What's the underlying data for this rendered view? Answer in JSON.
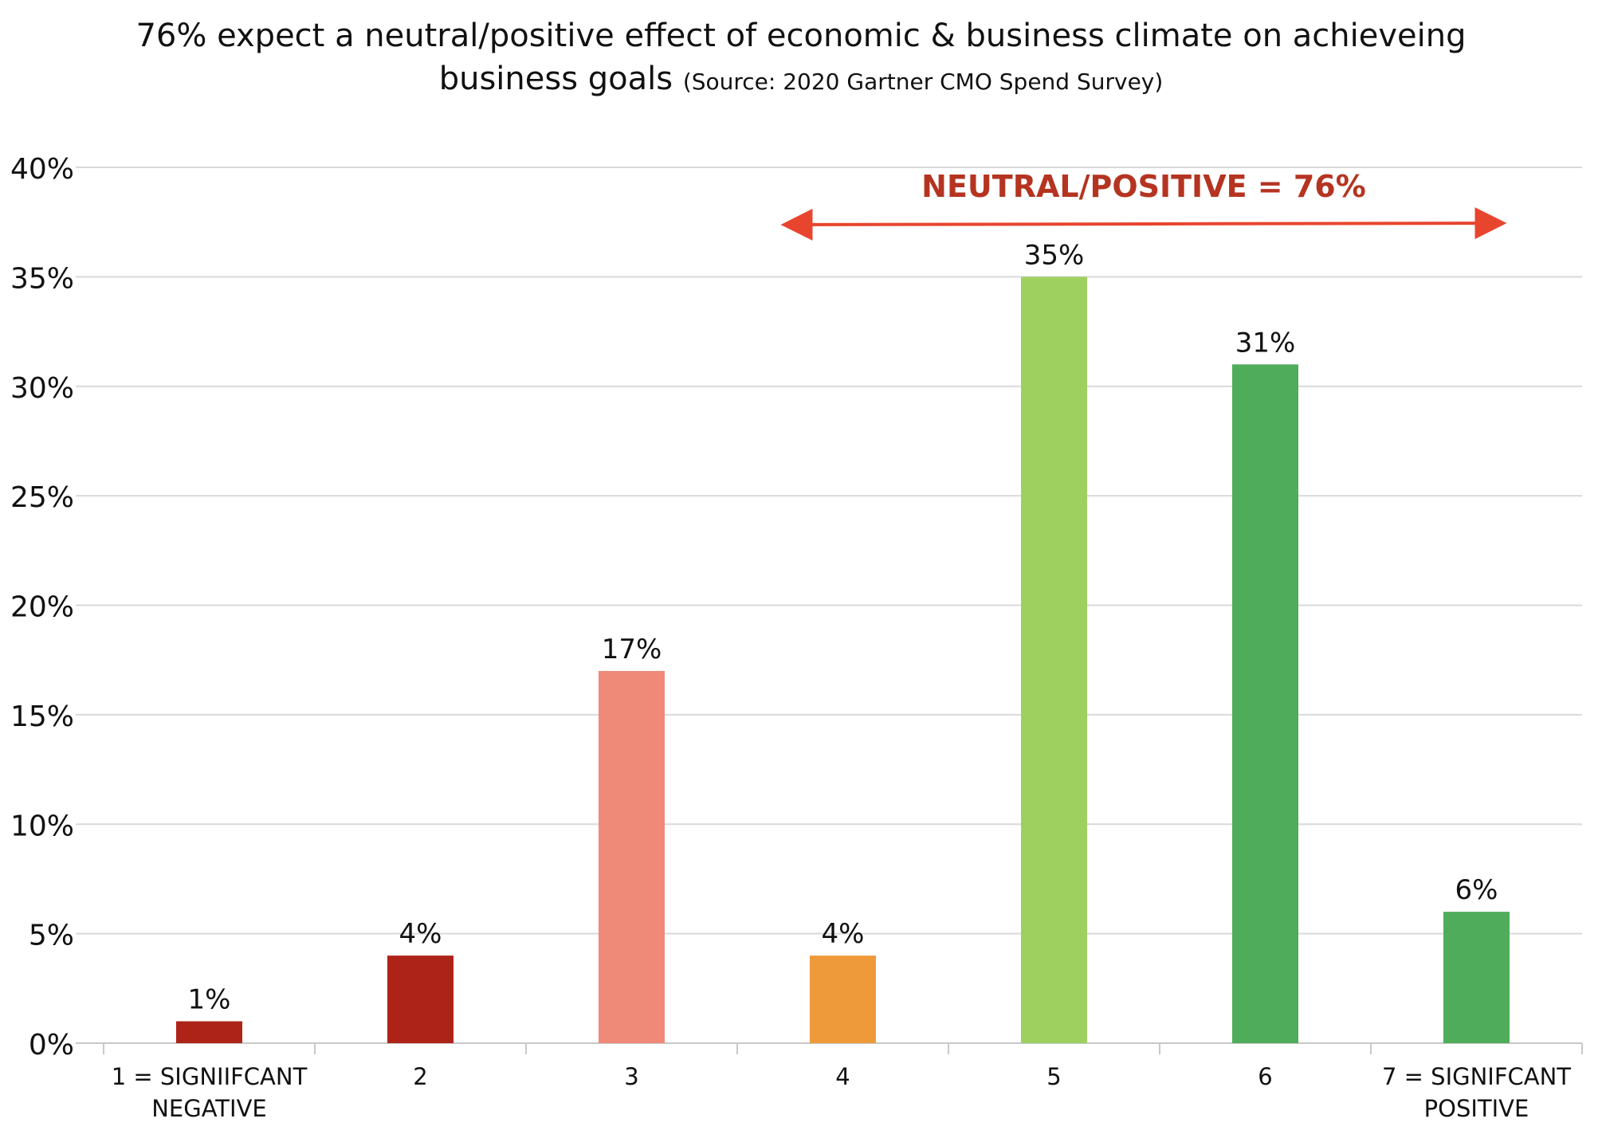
{
  "chart_data": {
    "type": "bar",
    "title_line1": "76% expect a neutral/positive effect of economic & business climate on achieveing",
    "title_line2": "business goals",
    "title_source": "(Source: 2020 Gartner CMO Spend Survey)",
    "categories": [
      "1 = SIGNIIFCANT NEGATIVE",
      "2",
      "3",
      "4",
      "5",
      "6",
      "7 = SIGNIFCANT POSITIVE"
    ],
    "category_lines": [
      [
        "1 = SIGNIIFCANT",
        "NEGATIVE"
      ],
      [
        "2"
      ],
      [
        "3"
      ],
      [
        "4"
      ],
      [
        "5"
      ],
      [
        "6"
      ],
      [
        "7 = SIGNIFCANT",
        "POSITIVE"
      ]
    ],
    "values": [
      1,
      4,
      17,
      4,
      35,
      31,
      6
    ],
    "data_labels": [
      "1%",
      "4%",
      "17%",
      "4%",
      "35%",
      "31%",
      "6%"
    ],
    "bar_colors": [
      "#ae2318",
      "#ae2318",
      "#ef8a78",
      "#ef9a3a",
      "#9ed060",
      "#4eac5a",
      "#4eac5a"
    ],
    "ylim": [
      0,
      40
    ],
    "yticks": [
      0,
      5,
      10,
      15,
      20,
      25,
      30,
      35,
      40
    ],
    "ytick_labels": [
      "0%",
      "5%",
      "10%",
      "15%",
      "20%",
      "25%",
      "30%",
      "35%",
      "40%"
    ],
    "grid": true,
    "annotation": {
      "text": "NEUTRAL/POSITIVE = 76%",
      "color": "#b53421",
      "arrow_color": "#e8452f",
      "span_from_category": "4",
      "span_to_category": "7 = SIGNIFCANT POSITIVE"
    },
    "colors": {
      "grid": "#d9d9d9",
      "axis": "#c8c8c8",
      "text": "#111111"
    }
  }
}
